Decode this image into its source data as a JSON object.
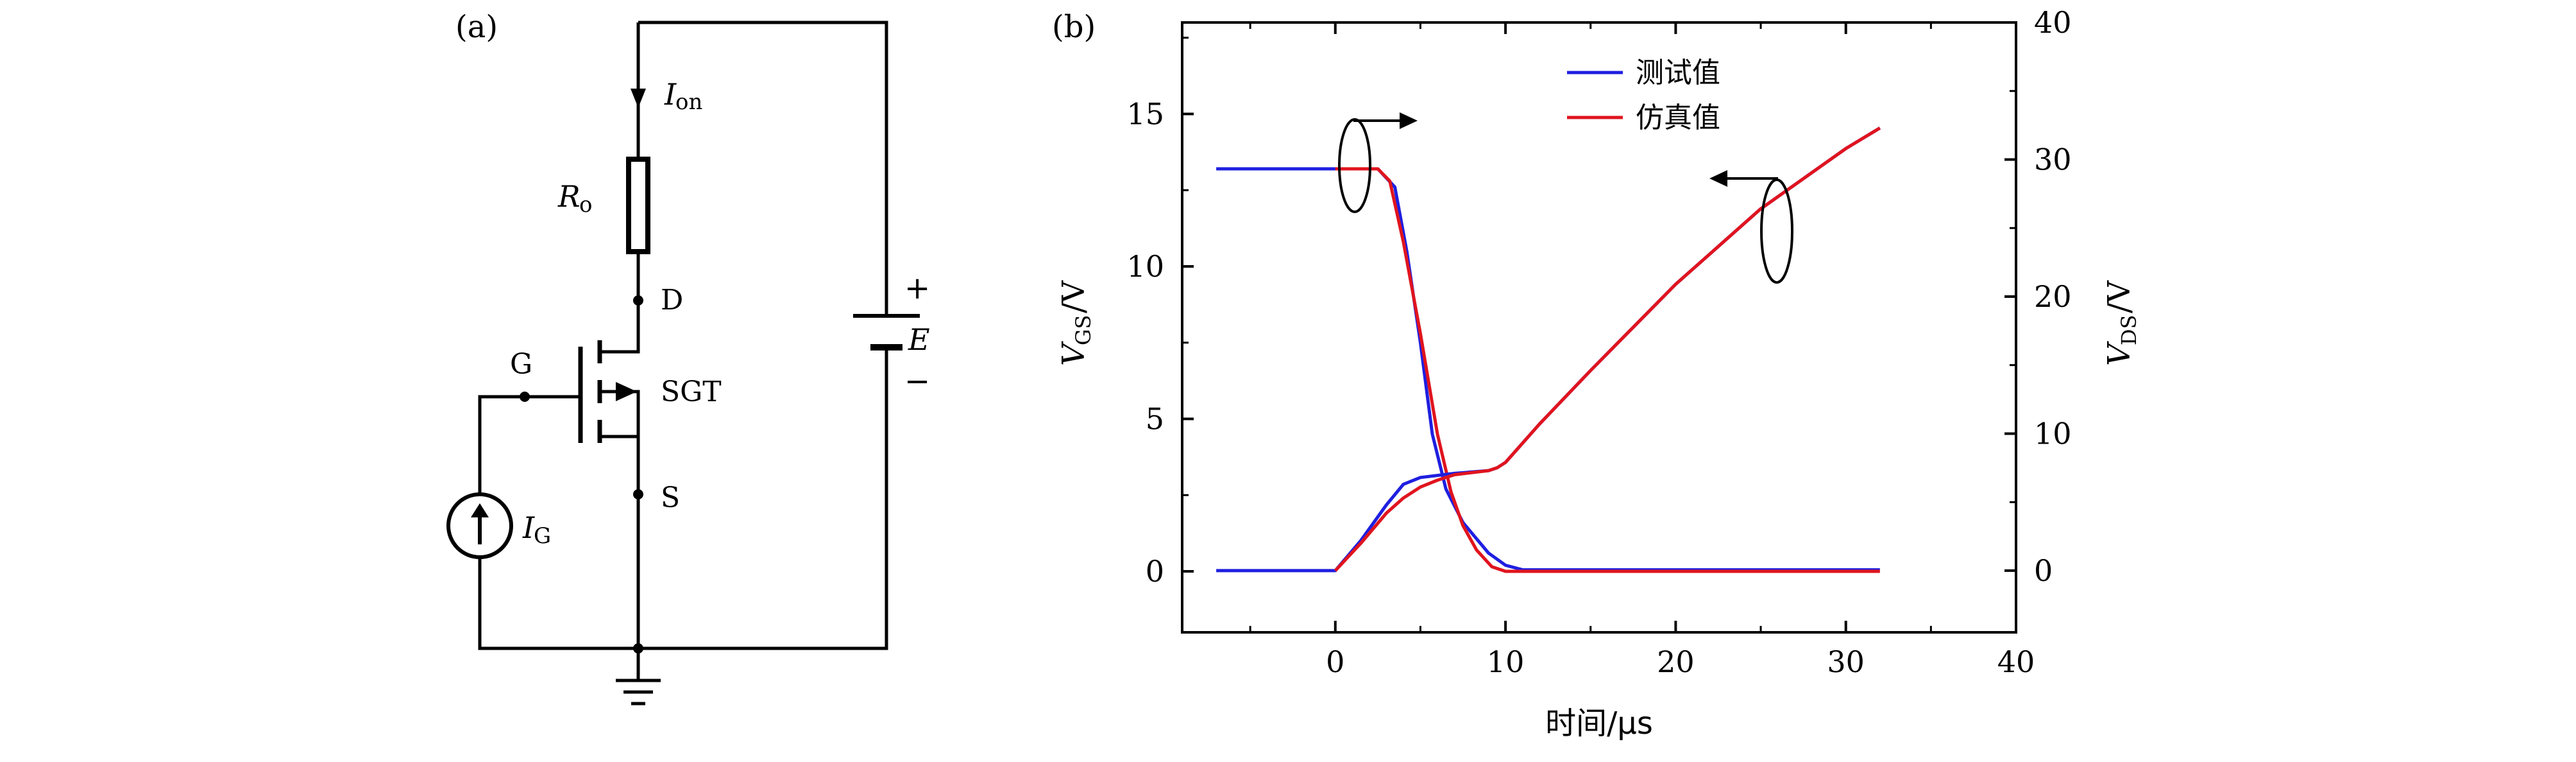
{
  "panel_a": {
    "label": "(a)",
    "current_on": {
      "symbol": "I",
      "subscript": "on"
    },
    "resistor": {
      "symbol": "R",
      "subscript": "o"
    },
    "drain": "D",
    "gate": "G",
    "device": "SGT",
    "source": "S",
    "gate_current": {
      "symbol": "I",
      "subscript": "G"
    },
    "supply": {
      "symbol": "E",
      "plus": "+",
      "minus": "−"
    }
  },
  "panel_b": {
    "label": "(b)",
    "legend": [
      "测试值",
      "仿真值"
    ],
    "xlabel": "时间/μs",
    "ylabel_left": {
      "main": "V",
      "sub": "GS",
      "unit": "/V"
    },
    "ylabel_right": {
      "main": "V",
      "sub": "DS",
      "unit": "/V"
    }
  },
  "colors": {
    "measured": "#1f1fe0",
    "simulated": "#e0141e",
    "axis": "#000000"
  },
  "chart_data": {
    "type": "line",
    "xlabel": "时间/μs",
    "x_ticks": [
      0,
      10,
      20,
      30,
      40
    ],
    "xlim": [
      -9,
      40
    ],
    "y_left_ticks": [
      0,
      5,
      10,
      15
    ],
    "ylim_left": [
      -2,
      18
    ],
    "y_right_ticks": [
      0,
      10,
      20,
      30,
      40
    ],
    "ylim_right": [
      -4.5,
      40
    ],
    "grid": false,
    "legend_position": "top-center",
    "series": [
      {
        "name": "测试值",
        "axis": "left",
        "x": [
          -7,
          0,
          2.5,
          3.5,
          4.2,
          5,
          5.7,
          6.5,
          7.5,
          9,
          10,
          11,
          15,
          20,
          25,
          32
        ],
        "y": [
          13.2,
          13.2,
          13.2,
          12.6,
          10.5,
          7.5,
          4.5,
          2.7,
          1.6,
          0.6,
          0.2,
          0.05,
          0.05,
          0.05,
          0.05,
          0.05
        ]
      },
      {
        "name": "仿真值",
        "axis": "left",
        "x": [
          0,
          2.5,
          3.2,
          4.0,
          5,
          6,
          6.8,
          7.5,
          8.3,
          9.2,
          10,
          11,
          15,
          20,
          25,
          32
        ],
        "y": [
          13.2,
          13.2,
          12.8,
          10.8,
          7.8,
          4.5,
          2.6,
          1.5,
          0.7,
          0.15,
          0.0,
          0.0,
          0.0,
          0.0,
          0.0,
          0.0
        ]
      },
      {
        "name": "测试值",
        "axis": "right",
        "x": [
          -7,
          0,
          1.5,
          3,
          4,
          5,
          7,
          9,
          9.5,
          10,
          12,
          15,
          20,
          25,
          30,
          32
        ],
        "y": [
          0,
          0,
          2.2,
          4.8,
          6.3,
          6.8,
          7.1,
          7.3,
          7.5,
          7.9,
          10.7,
          14.6,
          20.9,
          26.4,
          30.8,
          32.3
        ]
      },
      {
        "name": "仿真值",
        "axis": "right",
        "x": [
          0,
          1.5,
          3,
          4,
          5,
          6,
          7,
          9,
          9.5,
          10,
          12,
          15,
          20,
          25,
          30,
          32
        ],
        "y": [
          0,
          2.0,
          4.2,
          5.3,
          6.1,
          6.6,
          7.0,
          7.3,
          7.5,
          7.9,
          10.7,
          14.6,
          20.9,
          26.4,
          30.8,
          32.3
        ]
      }
    ]
  }
}
